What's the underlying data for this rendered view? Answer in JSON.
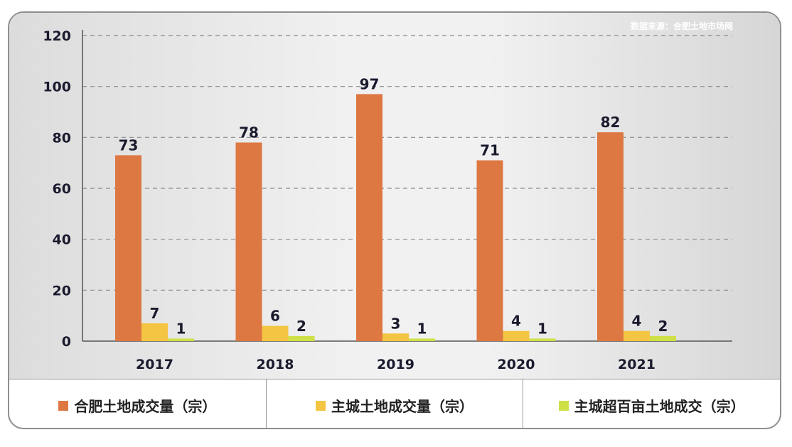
{
  "source_note": "数据来源：合肥土地市场网",
  "colors": {
    "series1": "#dd7842",
    "series2": "#f4c543",
    "series3": "#cfe046"
  },
  "chart_data": {
    "type": "bar",
    "categories": [
      "2017",
      "2018",
      "2019",
      "2020",
      "2021"
    ],
    "series": [
      {
        "name": "合肥土地成交量（宗）",
        "values": [
          73,
          78,
          97,
          71,
          82
        ]
      },
      {
        "name": "主城土地成交量（宗）",
        "values": [
          7,
          6,
          3,
          4,
          4
        ]
      },
      {
        "name": "主城超百亩土地成交（宗）",
        "values": [
          1,
          2,
          1,
          1,
          2
        ]
      }
    ],
    "yticks": [
      "0",
      "20",
      "40",
      "60",
      "80",
      "100",
      "120"
    ],
    "ylim": [
      0,
      120
    ],
    "grid": true,
    "legend_position": "bottom"
  }
}
